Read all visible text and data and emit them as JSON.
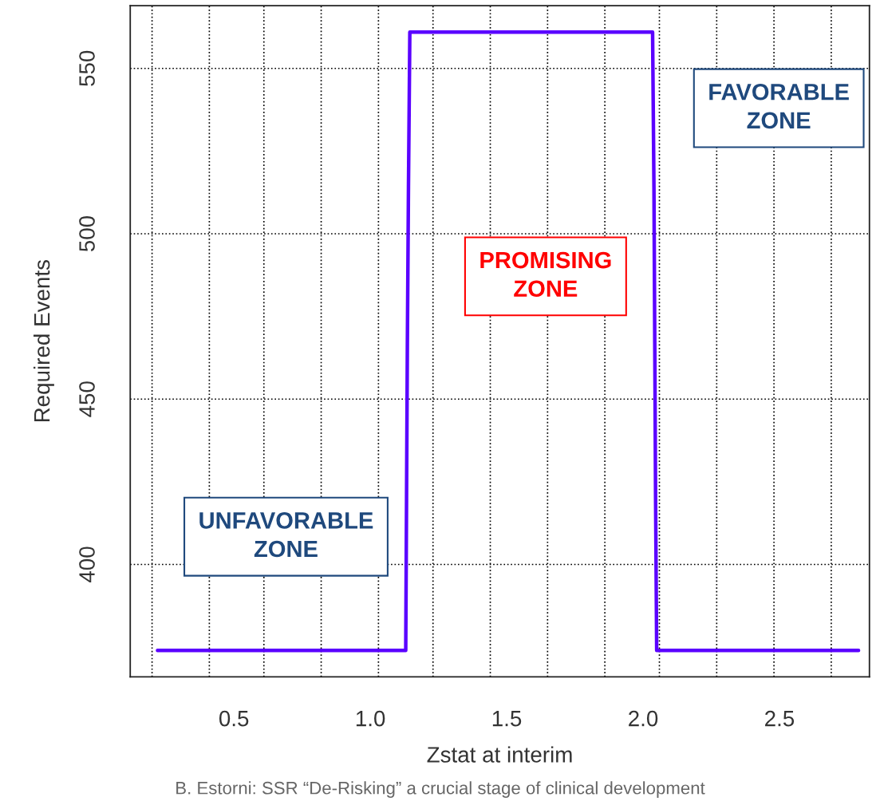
{
  "chart_data": {
    "type": "line",
    "xlabel": "Zstat at interim",
    "ylabel": "Required Events",
    "series": [
      {
        "color": "#5a00ff",
        "x": [
          0.22,
          1.13,
          1.133,
          1.136,
          1.14,
          1.145,
          2.035,
          2.04,
          2.043,
          2.046,
          2.05,
          2.79
        ],
        "values": [
          374,
          374,
          420,
          467,
          514,
          561,
          561,
          514,
          467,
          420,
          374,
          374
        ]
      }
    ],
    "xlim": [
      0.12,
      2.83
    ],
    "xticks": [
      {
        "value": 0.5,
        "label": "0.5"
      },
      {
        "value": 1.0,
        "label": "1.0"
      },
      {
        "value": 1.5,
        "label": "1.5"
      },
      {
        "value": 2.0,
        "label": "2.0"
      },
      {
        "value": 2.5,
        "label": "2.5"
      }
    ],
    "ylim": [
      366,
      569
    ],
    "yticks": [
      400,
      450,
      500,
      550
    ],
    "grid": "y",
    "line_style": "solid",
    "marker": "none",
    "ref_lines": [
      {
        "axis": "x",
        "value": 0.2,
        "line_style": "dotted",
        "color": "#000000"
      },
      {
        "axis": "x",
        "value": 0.41,
        "line_style": "dotted",
        "color": "#000000"
      },
      {
        "axis": "x",
        "value": 0.61,
        "line_style": "dotted",
        "color": "#000000"
      },
      {
        "axis": "x",
        "value": 0.82,
        "line_style": "dotted",
        "color": "#000000"
      },
      {
        "axis": "x",
        "value": 1.03,
        "line_style": "dotted",
        "color": "#000000"
      },
      {
        "axis": "x",
        "value": 1.23,
        "line_style": "dotted",
        "color": "#000000"
      },
      {
        "axis": "x",
        "value": 1.44,
        "line_style": "dotted",
        "color": "#000000"
      },
      {
        "axis": "x",
        "value": 1.65,
        "line_style": "dotted",
        "color": "#000000"
      },
      {
        "axis": "x",
        "value": 1.86,
        "line_style": "dotted",
        "color": "#000000"
      },
      {
        "axis": "x",
        "value": 2.06,
        "line_style": "dotted",
        "color": "#000000"
      },
      {
        "axis": "x",
        "value": 2.27,
        "line_style": "dotted",
        "color": "#000000"
      },
      {
        "axis": "x",
        "value": 2.48,
        "line_style": "dotted",
        "color": "#000000"
      },
      {
        "axis": "x",
        "value": 2.69,
        "line_style": "dotted",
        "color": "#000000"
      }
    ],
    "annotations": [
      "UNFAVORABLE\nZONE",
      "PROMISING\nZONE",
      "FAVORABLE\nZONE",
      "B. Estorni: SSR “De-Risking” a crucial stage of clinical development"
    ]
  }
}
